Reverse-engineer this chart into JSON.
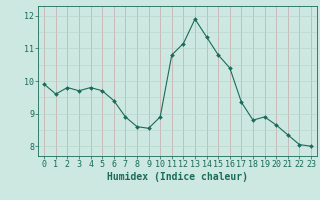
{
  "x": [
    0,
    1,
    2,
    3,
    4,
    5,
    6,
    7,
    8,
    9,
    10,
    11,
    12,
    13,
    14,
    15,
    16,
    17,
    18,
    19,
    20,
    21,
    22,
    23
  ],
  "y": [
    9.9,
    9.6,
    9.8,
    9.7,
    9.8,
    9.7,
    9.4,
    8.9,
    8.6,
    8.55,
    8.9,
    10.8,
    11.15,
    11.9,
    11.35,
    10.8,
    10.4,
    9.35,
    8.8,
    8.9,
    8.65,
    8.35,
    8.05,
    8.0
  ],
  "line_color": "#1a6b5a",
  "marker": "D",
  "marker_size": 2,
  "bg_color": "#cde8e0",
  "grid_color_h": "#b8d4cc",
  "grid_color_v": "#c8a8a8",
  "axis_color": "#1a6b5a",
  "xlabel": "Humidex (Indice chaleur)",
  "xlabel_fontsize": 7,
  "tick_fontsize": 6,
  "ylim": [
    7.7,
    12.3
  ],
  "xlim": [
    -0.5,
    23.5
  ],
  "yticks": [
    8,
    9,
    10,
    11,
    12
  ],
  "xticks": [
    0,
    1,
    2,
    3,
    4,
    5,
    6,
    7,
    8,
    9,
    10,
    11,
    12,
    13,
    14,
    15,
    16,
    17,
    18,
    19,
    20,
    21,
    22,
    23
  ],
  "figsize": [
    3.2,
    2.0
  ],
  "dpi": 100
}
